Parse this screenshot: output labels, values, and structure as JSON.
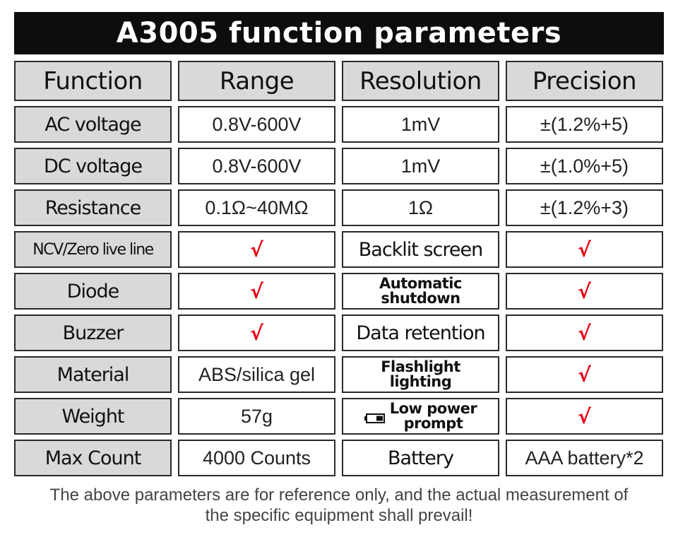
{
  "title": "A3005 function parameters",
  "headers": [
    "Function",
    "Range",
    "Resolution",
    "Precision"
  ],
  "rows": [
    {
      "function": "AC voltage",
      "range": "0.8V-600V",
      "resolution": "1mV",
      "precision": "±(1.2%+5)"
    },
    {
      "function": "DC voltage",
      "range": "0.8V-600V",
      "resolution": "1mV",
      "precision": "±(1.0%+5)"
    },
    {
      "function": "Resistance",
      "range": "0.1Ω~40MΩ",
      "resolution": "1Ω",
      "precision": "±(1.2%+3)"
    }
  ],
  "features_left": [
    {
      "label": "NCV/Zero live line",
      "value": "√"
    },
    {
      "label": "Diode",
      "value": "√"
    },
    {
      "label": "Buzzer",
      "value": "√"
    },
    {
      "label": "Material",
      "value": "ABS/silica gel"
    },
    {
      "label": "Weight",
      "value": "57g"
    },
    {
      "label": "Max Count",
      "value": "4000 Counts"
    }
  ],
  "features_right": [
    {
      "label": "Backlit screen",
      "value": "√"
    },
    {
      "label_line1": "Automatic",
      "label_line2": "shutdown",
      "value": "√"
    },
    {
      "label": "Data retention",
      "value": "√"
    },
    {
      "label_line1": "Flashlight",
      "label_line2": "lighting",
      "value": "√"
    },
    {
      "label_line1": "Low power",
      "label_line2": "prompt",
      "icon": "low-battery-icon",
      "value": "√"
    },
    {
      "label": "Battery",
      "value": "AAA battery*2"
    }
  ],
  "footer_line1": "The above parameters are for reference only, and the actual measurement of",
  "footer_line2": "the specific equipment shall prevail!",
  "colors": {
    "check": "#e60012",
    "label_bg": "#d9d9d9",
    "title_bg": "#0d0d0d"
  }
}
